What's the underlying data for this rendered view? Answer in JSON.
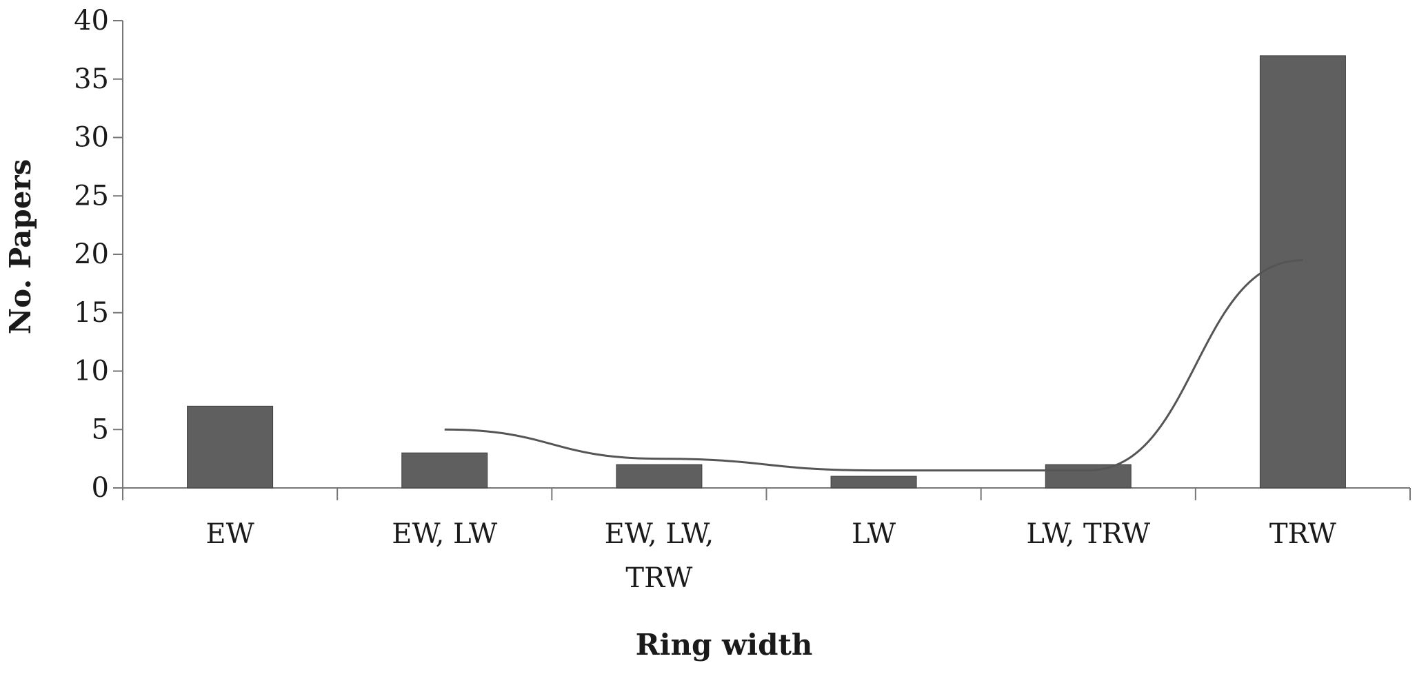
{
  "chart_data": {
    "type": "bar",
    "categories": [
      [
        "EW"
      ],
      [
        "EW, LW"
      ],
      [
        "EW, LW,",
        "TRW"
      ],
      [
        "LW"
      ],
      [
        "LW, TRW"
      ],
      [
        "TRW"
      ]
    ],
    "series": [
      {
        "type": "bar",
        "values": [
          7,
          3,
          2,
          1,
          2,
          37
        ]
      },
      {
        "type": "line",
        "values": [
          null,
          5,
          2.5,
          1.5,
          1.5,
          19.5
        ]
      }
    ],
    "xlabel": "Ring width",
    "ylabel": "No. Papers",
    "ylim": [
      0,
      40
    ],
    "yticks": [
      0,
      5,
      10,
      15,
      20,
      25,
      30,
      35,
      40
    ],
    "colors": {
      "bar": "#5f5f5f",
      "bar_edge": "#3f3f3f",
      "line": "#555555",
      "axis": "#777777"
    }
  }
}
